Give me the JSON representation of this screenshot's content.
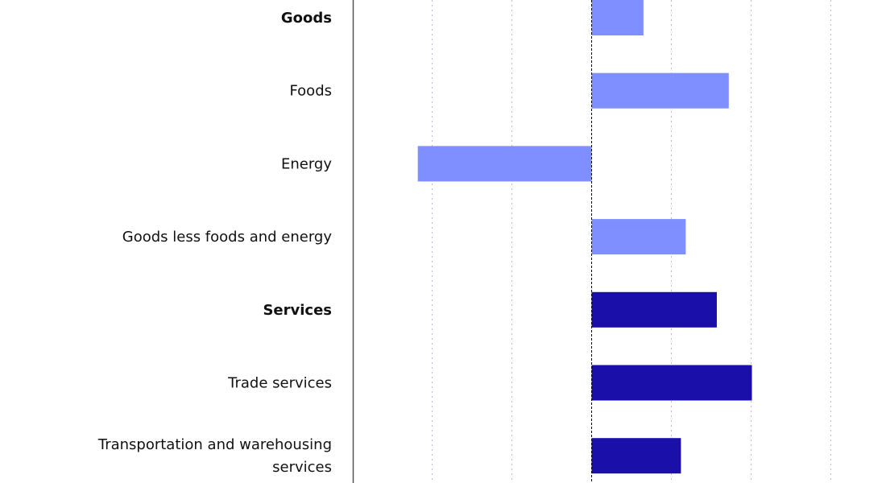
{
  "chart_data": {
    "type": "bar",
    "orientation": "horizontal",
    "grid": true,
    "colors": {
      "goods": "#7f8fff",
      "services": "#1a0fa8",
      "gridline": "#c9b3e6",
      "axis": "#555555",
      "zero_line": "#000000"
    },
    "categories": [
      {
        "label": "Goods",
        "bold": true,
        "group": "goods",
        "value": 0.65
      },
      {
        "label": "Foods",
        "bold": false,
        "group": "goods",
        "value": 1.72
      },
      {
        "label": "Energy",
        "bold": false,
        "group": "goods",
        "value": -2.18
      },
      {
        "label": "Goods less foods and energy",
        "bold": false,
        "group": "goods",
        "value": 1.18
      },
      {
        "label": "Services",
        "bold": true,
        "group": "services",
        "value": 1.57
      },
      {
        "label": "Trade services",
        "bold": false,
        "group": "services",
        "value": 2.01
      },
      {
        "label": "Transportation and warehousing services",
        "bold": false,
        "group": "services",
        "value": 1.12
      }
    ],
    "xlim": [
      -3,
      3.6
    ]
  }
}
